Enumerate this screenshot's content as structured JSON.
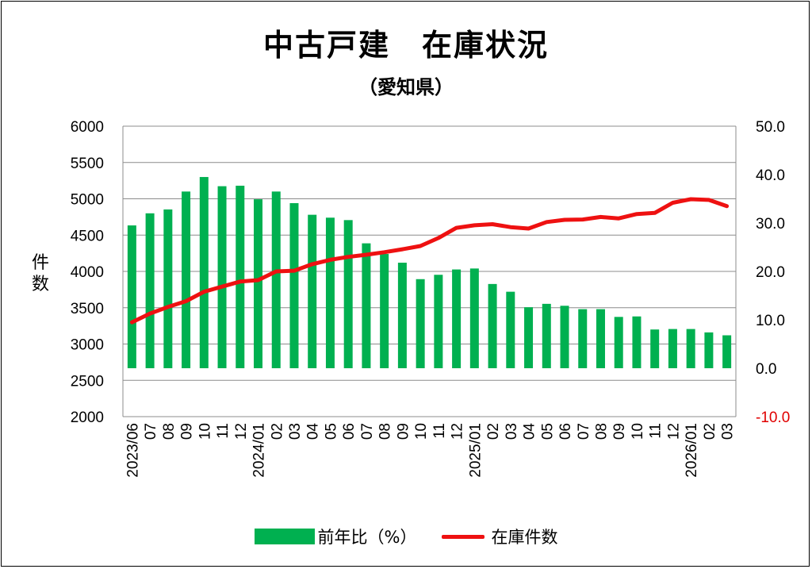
{
  "title": "中古戸建　在庫状況",
  "subtitle": "（愛知県）",
  "ylabel_left": "件\n数",
  "legend": {
    "bar_label": "前年比（%）",
    "line_label": "在庫件数"
  },
  "colors": {
    "bar": "#00b050",
    "line": "#ee1111",
    "negative_tick": "#e00000"
  },
  "chart_data": {
    "type": "bar",
    "categories": [
      "2023/06",
      "07",
      "08",
      "09",
      "10",
      "11",
      "12",
      "2024/01",
      "02",
      "03",
      "04",
      "05",
      "06",
      "07",
      "08",
      "09",
      "10",
      "11",
      "12",
      "2025/01",
      "02",
      "03",
      "04",
      "05",
      "06",
      "07",
      "08",
      "09",
      "10",
      "11",
      "12",
      "2026/01",
      "02",
      "03"
    ],
    "series": [
      {
        "name": "前年比（%）",
        "type": "bar",
        "axis": "right",
        "values": [
          29.5,
          32.0,
          32.8,
          36.5,
          39.5,
          37.6,
          37.7,
          34.9,
          36.5,
          34.1,
          31.7,
          31.1,
          30.6,
          25.8,
          23.6,
          21.8,
          18.4,
          19.3,
          20.4,
          20.6,
          17.4,
          15.8,
          12.6,
          13.3,
          12.9,
          12.2,
          12.2,
          10.6,
          10.7,
          8.0,
          8.1,
          8.1,
          7.4,
          6.8
        ]
      },
      {
        "name": "在庫件数",
        "type": "line",
        "axis": "left",
        "values": [
          3300,
          3420,
          3510,
          3590,
          3720,
          3790,
          3860,
          3880,
          4000,
          4010,
          4100,
          4160,
          4200,
          4230,
          4265,
          4305,
          4350,
          4460,
          4600,
          4635,
          4650,
          4610,
          4590,
          4680,
          4710,
          4715,
          4750,
          4730,
          4790,
          4805,
          4945,
          4995,
          4985,
          4900
        ]
      }
    ],
    "y_left": {
      "min": 2000,
      "max": 6000,
      "ticks": [
        "6000",
        "5500",
        "5000",
        "4500",
        "4000",
        "3500",
        "3000",
        "2500",
        "2000"
      ]
    },
    "y_right": {
      "min": -10,
      "max": 50,
      "ticks": [
        "50.0",
        "40.0",
        "30.0",
        "20.0",
        "10.0",
        "0.0",
        "-10.0"
      ]
    },
    "grid": "horizontal",
    "legend_position": "bottom"
  }
}
